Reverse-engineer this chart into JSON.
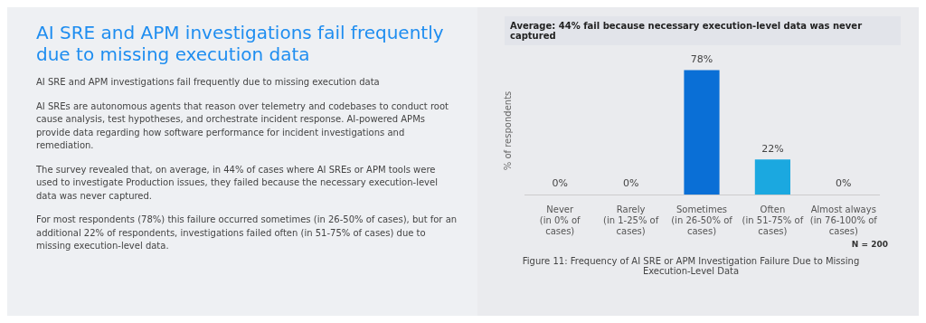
{
  "chart_data": {
    "type": "bar",
    "title": "Average: 44% fail because necessary execution-level data was never captured",
    "ylabel": "% of respondents",
    "categories": [
      "Never\n(in 0% of cases)",
      "Rarely\n(in 1-25% of cases)",
      "Sometimes\n(in 26-50% of cases)",
      "Often\n(in 51-75% of cases)",
      "Almost always\n(in 76-100% of cases)"
    ],
    "values": [
      0,
      0,
      78,
      22,
      0
    ],
    "colors": [
      "#0a6fd6",
      "#0a6fd6",
      "#0a6fd6",
      "#1ba8e0",
      "#1ba8e0"
    ],
    "value_labels": [
      "0%",
      "0%",
      "78%",
      "22%",
      "0%"
    ],
    "tick_labels": "x",
    "grid": false,
    "legend": false,
    "annotations": [
      "AI SRE and APM investigations fail frequently due to missing execution data",
      "AI SRE and APM investigations fail frequently due to missing execution data",
      "AI SREs are autonomous agents that reason over telemetry and codebases to conduct root cause analysis, test hypotheses, and orchestrate incident response. AI-powered APMs provide data regarding how software performance for incident investigations and remediation.",
      "The survey revealed that, on average, in 44% of cases where AI SREs or APM tools were used to investigate Production issues, they failed because the necessary execution-level data was never captured.",
      "For most respondents (78%) this failure occurred sometimes (in 26-50% of cases), but for an additional 22% of respondents, investigations failed often (in 51-75% of cases) due to missing execution-level data.",
      "N = 200",
      "Figure 11: Frequency of AI SRE or APM Investigation Failure Due to Missing Execution-Level Data"
    ]
  }
}
